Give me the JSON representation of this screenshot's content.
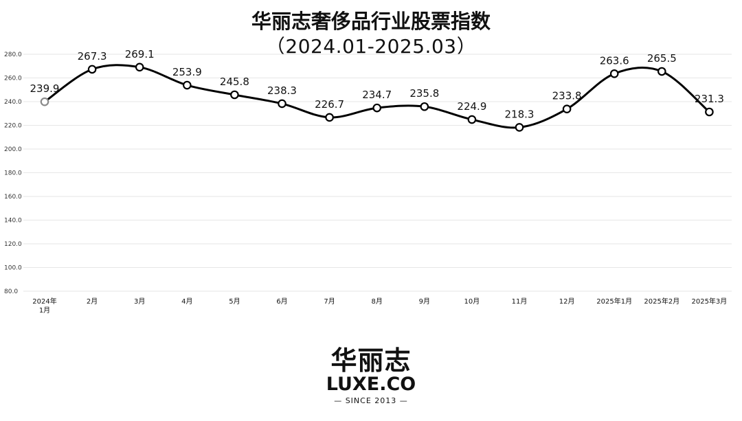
{
  "title_line1": "华丽志奢侈品行业股票指数",
  "title_line2": "（2024.01-2025.03）",
  "logo": {
    "cn": "华丽志",
    "en": "LUXE.CO",
    "since": "— SINCE 2013 —"
  },
  "colors": {
    "line": "#000000",
    "first_marker": "#8a8a8a",
    "grid": "#e6e6e6"
  },
  "chart_data": {
    "type": "line",
    "title": "华丽志奢侈品行业股票指数（2024.01-2025.03）",
    "xlabel": "",
    "ylabel": "",
    "categories": [
      "2024年1月",
      "2月",
      "3月",
      "4月",
      "5月",
      "6月",
      "7月",
      "8月",
      "9月",
      "10月",
      "11月",
      "12月",
      "2025年1月",
      "2025年2月",
      "2025年3月"
    ],
    "category_lines": [
      [
        "2024年",
        "1月"
      ],
      [
        "2月"
      ],
      [
        "3月"
      ],
      [
        "4月"
      ],
      [
        "5月"
      ],
      [
        "6月"
      ],
      [
        "7月"
      ],
      [
        "8月"
      ],
      [
        "9月"
      ],
      [
        "10月"
      ],
      [
        "11月"
      ],
      [
        "12月"
      ],
      [
        "2025年1月"
      ],
      [
        "2025年2月"
      ],
      [
        "2025年3月"
      ]
    ],
    "values": [
      239.9,
      267.3,
      269.1,
      253.9,
      245.8,
      238.3,
      226.7,
      234.7,
      235.8,
      224.9,
      218.3,
      233.8,
      263.6,
      265.5,
      231.3
    ],
    "value_labels": [
      "239.9",
      "267.3",
      "269.1",
      "253.9",
      "245.8",
      "238.3",
      "226.7",
      "234.7",
      "235.8",
      "224.9",
      "218.3",
      "233.8",
      "263.6",
      "265.5",
      "231.3"
    ],
    "ylim": [
      80,
      280
    ],
    "yticks": [
      "80.0",
      "100.0",
      "120.0",
      "140.0",
      "160.0",
      "180.0",
      "200.0",
      "220.0",
      "240.0",
      "260.0",
      "280.0"
    ],
    "grid": true,
    "smooth": true,
    "legend": "none"
  }
}
